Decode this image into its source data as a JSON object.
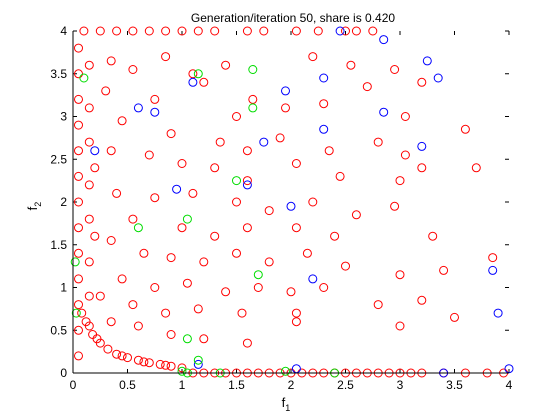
{
  "chart_data": {
    "type": "scatter",
    "title": "Generation/iteration 50, share is 0.420",
    "xlabel": "f",
    "xlabel_sub": "1",
    "ylabel": "f",
    "ylabel_sub": "2",
    "xlim": [
      0,
      4
    ],
    "ylim": [
      0,
      4
    ],
    "xticks": [
      0,
      0.5,
      1,
      1.5,
      2,
      2.5,
      3,
      3.5,
      4
    ],
    "xtick_labels": [
      "0",
      "0.5",
      "1",
      "1.5",
      "2",
      "2.5",
      "3",
      "3.5",
      "4"
    ],
    "yticks": [
      0,
      0.5,
      1,
      1.5,
      2,
      2.5,
      3,
      3.5,
      4
    ],
    "ytick_labels": [
      "0",
      "0.5",
      "1",
      "1.5",
      "2",
      "2.5",
      "3",
      "3.5",
      "4"
    ],
    "grid": false,
    "marker": "open-circle",
    "series": [
      {
        "name": "red",
        "color": "#ff0000",
        "points": [
          [
            0.1,
            4.0
          ],
          [
            0.25,
            4.0
          ],
          [
            0.4,
            4.0
          ],
          [
            0.55,
            4.0
          ],
          [
            0.7,
            4.0
          ],
          [
            0.85,
            4.0
          ],
          [
            1.0,
            4.0
          ],
          [
            1.15,
            4.0
          ],
          [
            1.3,
            4.0
          ],
          [
            1.6,
            4.0
          ],
          [
            1.75,
            4.0
          ],
          [
            2.05,
            4.0
          ],
          [
            2.25,
            4.0
          ],
          [
            2.5,
            4.0
          ],
          [
            2.6,
            4.0
          ],
          [
            2.75,
            4.0
          ],
          [
            0.35,
            3.65
          ],
          [
            0.55,
            3.55
          ],
          [
            0.85,
            3.7
          ],
          [
            1.1,
            3.5
          ],
          [
            1.4,
            3.6
          ],
          [
            2.2,
            3.7
          ],
          [
            2.55,
            3.6
          ],
          [
            2.95,
            3.55
          ],
          [
            3.2,
            3.4
          ],
          [
            0.3,
            3.3
          ],
          [
            0.75,
            3.2
          ],
          [
            1.2,
            3.4
          ],
          [
            1.65,
            3.2
          ],
          [
            1.95,
            3.1
          ],
          [
            2.3,
            3.15
          ],
          [
            2.7,
            3.35
          ],
          [
            3.05,
            3.0
          ],
          [
            1.5,
            3.0
          ],
          [
            0.45,
            2.95
          ],
          [
            0.9,
            2.8
          ],
          [
            1.35,
            2.7
          ],
          [
            1.6,
            2.6
          ],
          [
            1.9,
            2.75
          ],
          [
            2.35,
            2.6
          ],
          [
            2.8,
            2.7
          ],
          [
            3.05,
            2.55
          ],
          [
            3.6,
            2.85
          ],
          [
            3.7,
            2.4
          ],
          [
            0.35,
            2.6
          ],
          [
            0.7,
            2.55
          ],
          [
            1.0,
            2.45
          ],
          [
            1.3,
            2.4
          ],
          [
            1.6,
            2.25
          ],
          [
            2.05,
            2.45
          ],
          [
            2.45,
            2.3
          ],
          [
            3.0,
            2.25
          ],
          [
            3.2,
            2.4
          ],
          [
            0.4,
            2.1
          ],
          [
            0.75,
            2.05
          ],
          [
            1.1,
            2.1
          ],
          [
            1.5,
            2.0
          ],
          [
            1.8,
            1.9
          ],
          [
            2.2,
            2.0
          ],
          [
            2.6,
            1.85
          ],
          [
            2.95,
            1.95
          ],
          [
            0.55,
            1.8
          ],
          [
            1.0,
            1.7
          ],
          [
            1.3,
            1.6
          ],
          [
            1.6,
            1.7
          ],
          [
            2.05,
            1.7
          ],
          [
            2.4,
            1.6
          ],
          [
            3.3,
            1.6
          ],
          [
            0.35,
            1.55
          ],
          [
            0.65,
            1.4
          ],
          [
            0.9,
            1.35
          ],
          [
            1.2,
            1.3
          ],
          [
            1.5,
            1.4
          ],
          [
            1.8,
            1.3
          ],
          [
            2.15,
            1.4
          ],
          [
            2.5,
            1.25
          ],
          [
            3.0,
            1.15
          ],
          [
            3.4,
            1.2
          ],
          [
            3.85,
            1.35
          ],
          [
            0.45,
            1.1
          ],
          [
            0.75,
            1.0
          ],
          [
            1.05,
            1.05
          ],
          [
            1.4,
            0.95
          ],
          [
            1.7,
            1.0
          ],
          [
            2.0,
            0.95
          ],
          [
            2.3,
            1.0
          ],
          [
            2.8,
            0.8
          ],
          [
            3.2,
            0.85
          ],
          [
            0.25,
            0.9
          ],
          [
            0.55,
            0.8
          ],
          [
            0.85,
            0.7
          ],
          [
            1.15,
            0.75
          ],
          [
            1.55,
            0.7
          ],
          [
            2.05,
            0.7
          ],
          [
            0.35,
            0.6
          ],
          [
            0.6,
            0.55
          ],
          [
            0.9,
            0.45
          ],
          [
            1.2,
            0.4
          ],
          [
            1.6,
            0.35
          ],
          [
            2.05,
            0.6
          ],
          [
            3.0,
            0.55
          ],
          [
            3.5,
            0.65
          ],
          [
            0.05,
            3.8
          ],
          [
            0.05,
            3.5
          ],
          [
            0.05,
            3.2
          ],
          [
            0.05,
            2.9
          ],
          [
            0.05,
            2.6
          ],
          [
            0.05,
            2.3
          ],
          [
            0.05,
            2.0
          ],
          [
            0.05,
            1.7
          ],
          [
            0.05,
            1.4
          ],
          [
            0.05,
            1.1
          ],
          [
            0.05,
            0.8
          ],
          [
            0.05,
            0.5
          ],
          [
            0.05,
            0.2
          ],
          [
            0.15,
            3.6
          ],
          [
            0.15,
            3.1
          ],
          [
            0.15,
            2.7
          ],
          [
            0.15,
            2.2
          ],
          [
            0.15,
            1.8
          ],
          [
            0.15,
            1.3
          ],
          [
            0.15,
            0.9
          ],
          [
            0.15,
            0.55
          ],
          [
            0.2,
            2.4
          ],
          [
            0.2,
            1.6
          ],
          [
            0.12,
            0.6
          ],
          [
            0.18,
            0.45
          ],
          [
            0.25,
            0.35
          ],
          [
            0.32,
            0.28
          ],
          [
            0.4,
            0.22
          ],
          [
            0.5,
            0.18
          ],
          [
            0.6,
            0.15
          ],
          [
            0.7,
            0.12
          ],
          [
            0.8,
            0.1
          ],
          [
            0.9,
            0.08
          ],
          [
            1.0,
            0.06
          ],
          [
            0.08,
            0.7
          ],
          [
            0.22,
            0.4
          ],
          [
            0.45,
            0.2
          ],
          [
            0.65,
            0.13
          ],
          [
            0.85,
            0.09
          ],
          [
            1.1,
            0.0
          ],
          [
            1.2,
            0.0
          ],
          [
            1.3,
            0.0
          ],
          [
            1.4,
            0.0
          ],
          [
            1.5,
            0.0
          ],
          [
            1.6,
            0.0
          ],
          [
            1.7,
            0.0
          ],
          [
            1.8,
            0.0
          ],
          [
            1.9,
            0.0
          ],
          [
            2.0,
            0.0
          ],
          [
            2.1,
            0.0
          ],
          [
            2.2,
            0.0
          ],
          [
            2.3,
            0.0
          ],
          [
            2.4,
            0.0
          ],
          [
            2.5,
            0.0
          ],
          [
            2.6,
            0.0
          ],
          [
            2.7,
            0.0
          ],
          [
            2.8,
            0.0
          ],
          [
            2.9,
            0.0
          ],
          [
            3.0,
            0.0
          ],
          [
            3.1,
            0.0
          ],
          [
            3.2,
            0.0
          ],
          [
            3.4,
            0.0
          ],
          [
            3.6,
            0.0
          ],
          [
            3.8,
            0.0
          ],
          [
            3.95,
            0.0
          ]
        ]
      },
      {
        "name": "blue",
        "color": "#0000ff",
        "points": [
          [
            0.6,
            3.1
          ],
          [
            0.75,
            3.05
          ],
          [
            1.1,
            3.4
          ],
          [
            1.95,
            3.3
          ],
          [
            2.3,
            3.45
          ],
          [
            2.45,
            4.0
          ],
          [
            2.85,
            3.9
          ],
          [
            3.25,
            3.65
          ],
          [
            3.35,
            3.45
          ],
          [
            2.85,
            3.05
          ],
          [
            2.3,
            2.85
          ],
          [
            3.2,
            2.65
          ],
          [
            0.2,
            2.6
          ],
          [
            1.75,
            2.7
          ],
          [
            1.6,
            2.2
          ],
          [
            0.95,
            2.15
          ],
          [
            2.0,
            1.95
          ],
          [
            2.2,
            1.1
          ],
          [
            3.85,
            1.2
          ],
          [
            3.9,
            0.7
          ],
          [
            4.0,
            0.05
          ],
          [
            1.15,
            0.1
          ],
          [
            2.05,
            0.05
          ],
          [
            3.4,
            0.0
          ]
        ]
      },
      {
        "name": "green",
        "color": "#00dd00",
        "points": [
          [
            0.1,
            3.45
          ],
          [
            1.15,
            3.5
          ],
          [
            1.65,
            3.55
          ],
          [
            1.65,
            3.1
          ],
          [
            1.5,
            2.25
          ],
          [
            0.6,
            1.7
          ],
          [
            1.05,
            1.8
          ],
          [
            1.7,
            1.15
          ],
          [
            0.02,
            1.3
          ],
          [
            0.03,
            0.7
          ],
          [
            1.05,
            0.4
          ],
          [
            1.15,
            0.15
          ],
          [
            1.0,
            0.02
          ],
          [
            1.05,
            0.0
          ],
          [
            1.35,
            0.0
          ],
          [
            1.95,
            0.02
          ],
          [
            2.4,
            0.0
          ]
        ]
      }
    ]
  }
}
